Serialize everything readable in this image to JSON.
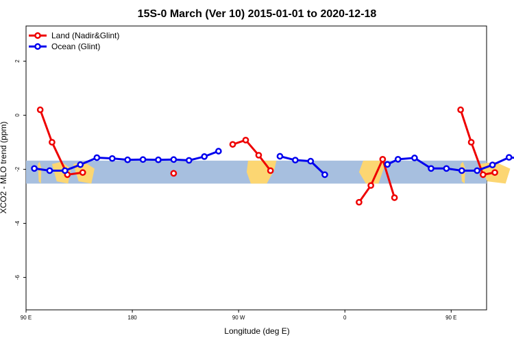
{
  "chart_data": {
    "type": "line",
    "title": "15S-0 March (Ver 10)   2015-01-01 to 2020-12-18",
    "xlabel": "Longitude (deg E)",
    "ylabel": "XCO2 - MLO trend (ppm)",
    "xlim": [
      90,
      480
    ],
    "ylim": [
      -7.2,
      3.3
    ],
    "x_ticks": [
      {
        "value": 90,
        "label": "90 E"
      },
      {
        "value": 180,
        "label": "180"
      },
      {
        "value": 270,
        "label": "90 W"
      },
      {
        "value": 360,
        "label": "0"
      },
      {
        "value": 450,
        "label": "90 E"
      },
      {
        "value": 540,
        "label": "180"
      }
    ],
    "y_ticks": [
      {
        "value": 2,
        "label": "2"
      },
      {
        "value": 0,
        "label": "0"
      },
      {
        "value": -2,
        "label": "-2"
      },
      {
        "value": -4,
        "label": "-4"
      },
      {
        "value": -6,
        "label": "-6"
      }
    ],
    "legend_position": "top-left",
    "map_band": {
      "y_top": -1.68,
      "y_bottom": -2.53,
      "ocean_color": "#a7bfdf",
      "land_color": "#fcd672"
    },
    "series": [
      {
        "name": "Land (Nadir&Glint)",
        "color": "#ee0000",
        "segments": [
          [
            [
              102,
              0.2
            ],
            [
              112,
              -1
            ],
            [
              125,
              -2.2
            ],
            [
              138,
              -2.12
            ]
          ],
          [
            [
              215,
              -2.15
            ]
          ],
          [
            [
              265,
              -1.08
            ],
            [
              276,
              -0.92
            ],
            [
              287,
              -1.48
            ],
            [
              297,
              -2.05
            ]
          ],
          [
            [
              372,
              -3.22
            ],
            [
              382,
              -2.6
            ],
            [
              392,
              -1.63
            ],
            [
              402,
              -3.05
            ]
          ],
          [
            [
              458,
              0.2
            ],
            [
              467,
              -1
            ],
            [
              477,
              -2.2
            ],
            [
              487,
              -2.12
            ]
          ]
        ]
      },
      {
        "name": "Ocean (Glint)",
        "color": "#0000ee",
        "segments": [
          [
            [
              97,
              -1.97
            ],
            [
              110,
              -2.05
            ],
            [
              123,
              -2.05
            ],
            [
              136,
              -1.83
            ],
            [
              150,
              -1.57
            ],
            [
              163,
              -1.6
            ],
            [
              176,
              -1.65
            ],
            [
              189,
              -1.64
            ],
            [
              202,
              -1.65
            ],
            [
              215,
              -1.64
            ],
            [
              228,
              -1.67
            ],
            [
              241,
              -1.53
            ],
            [
              253,
              -1.33
            ]
          ],
          [
            [
              305,
              -1.52
            ],
            [
              318,
              -1.66
            ],
            [
              331,
              -1.7
            ],
            [
              343,
              -2.2
            ]
          ],
          [
            [
              396,
              -1.82
            ],
            [
              405,
              -1.63
            ],
            [
              419,
              -1.58
            ],
            [
              433,
              -1.97
            ],
            [
              446,
              -1.97
            ],
            [
              459,
              -2.05
            ],
            [
              472,
              -2.05
            ],
            [
              485,
              -1.84
            ],
            [
              499,
              -1.56
            ],
            [
              512,
              -1.6
            ]
          ]
        ]
      }
    ]
  }
}
